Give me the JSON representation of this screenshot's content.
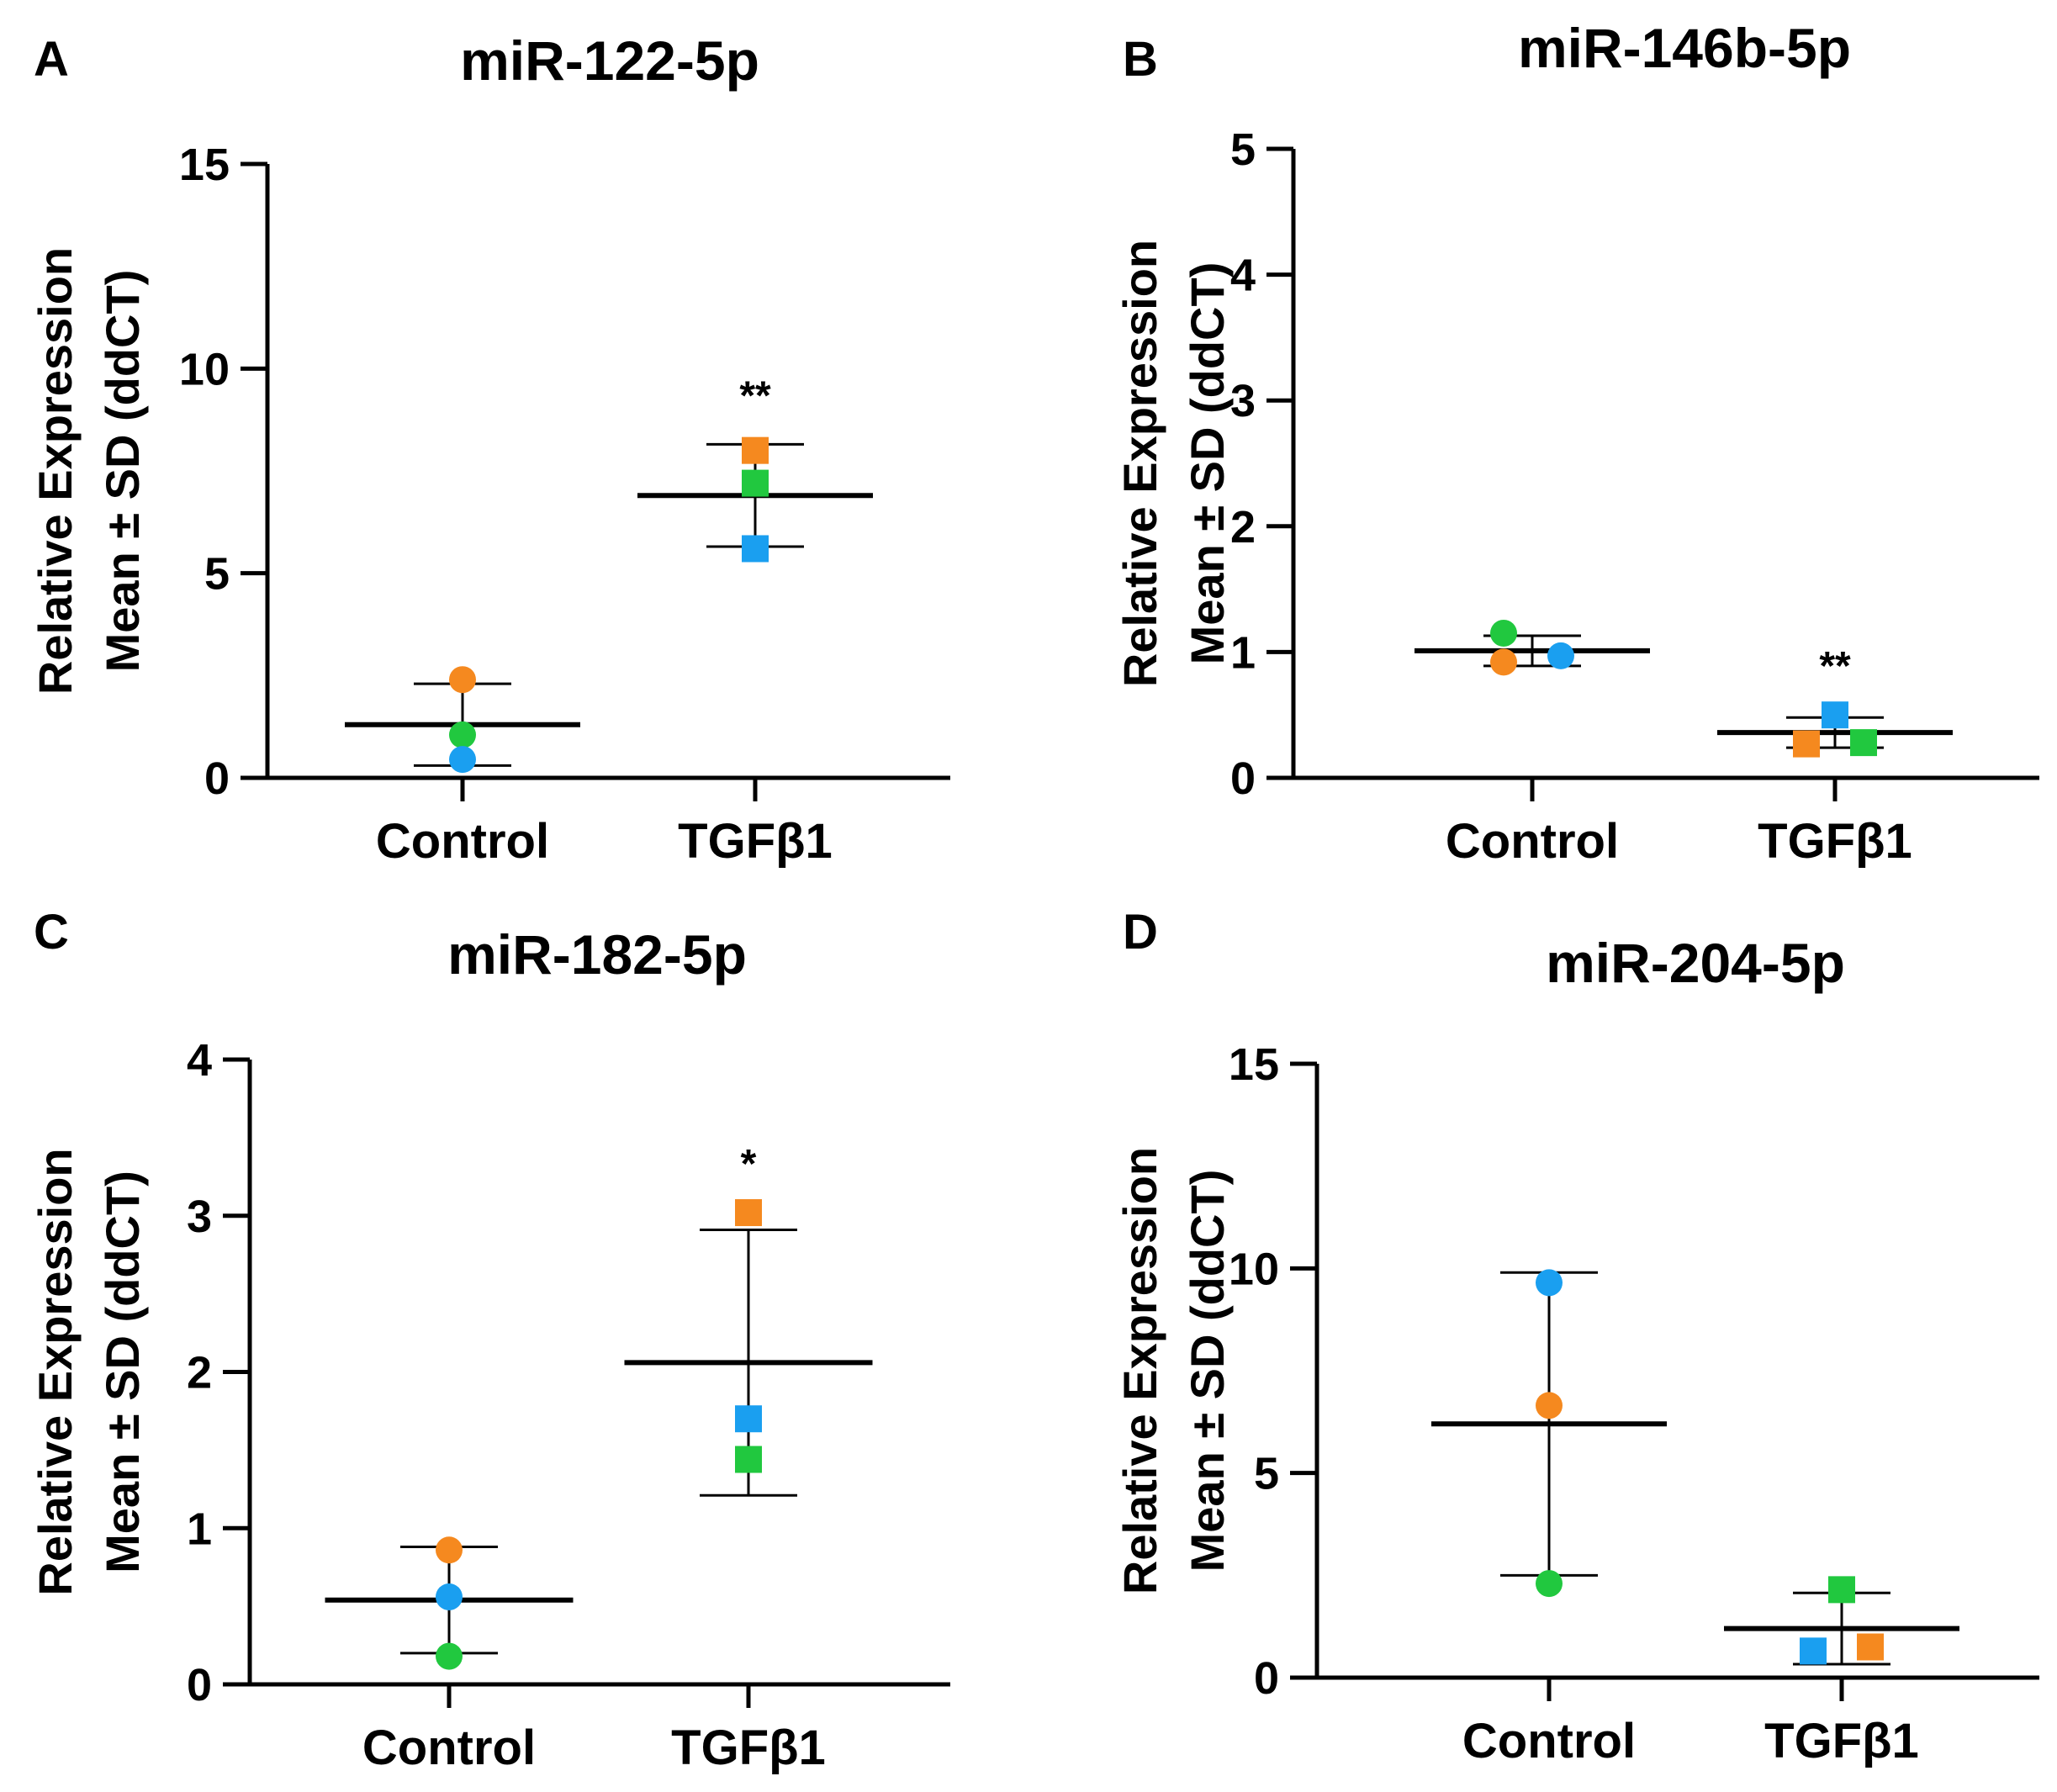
{
  "chart_data": [
    {
      "panel": "A",
      "type": "scatter",
      "title": "miR-122-5p",
      "ylabel_line1": "Relative Expression",
      "ylabel_line2": "Mean ± SD (ddCT)",
      "categories": [
        "Control",
        "TGFβ1"
      ],
      "ylim": [
        0,
        15
      ],
      "yticks": [
        0,
        5,
        10,
        15
      ],
      "groups": [
        {
          "name": "Control",
          "marker": "circle",
          "mean": 1.3,
          "sd": 1.0,
          "points": [
            {
              "value": 2.4,
              "color": "#f5891f"
            },
            {
              "value": 1.05,
              "color": "#21c83f"
            },
            {
              "value": 0.45,
              "color": "#1a9ff0"
            }
          ],
          "significance": ""
        },
        {
          "name": "TGFβ1",
          "marker": "square",
          "mean": 6.9,
          "sd": 1.25,
          "points": [
            {
              "value": 8.0,
              "color": "#f5891f"
            },
            {
              "value": 7.2,
              "color": "#21c83f"
            },
            {
              "value": 5.6,
              "color": "#1a9ff0"
            }
          ],
          "significance": "**"
        }
      ]
    },
    {
      "panel": "B",
      "type": "scatter",
      "title": "miR-146b-5p",
      "ylabel_line1": "Relative Expression",
      "ylabel_line2": "Mean ± SD (ddCT)",
      "categories": [
        "Control",
        "TGFβ1"
      ],
      "ylim": [
        0,
        5
      ],
      "yticks": [
        0,
        1,
        2,
        3,
        4,
        5
      ],
      "groups": [
        {
          "name": "Control",
          "marker": "circle",
          "mean": 1.01,
          "sd": 0.12,
          "points": [
            {
              "value": 1.15,
              "color": "#21c83f",
              "jitter": -1
            },
            {
              "value": 0.92,
              "color": "#f5891f",
              "jitter": -1
            },
            {
              "value": 0.97,
              "color": "#1a9ff0",
              "jitter": 1
            }
          ],
          "significance": ""
        },
        {
          "name": "TGFβ1",
          "marker": "square",
          "mean": 0.36,
          "sd": 0.12,
          "points": [
            {
              "value": 0.5,
              "color": "#1a9ff0",
              "jitter": 0
            },
            {
              "value": 0.27,
              "color": "#f5891f",
              "jitter": -1
            },
            {
              "value": 0.28,
              "color": "#21c83f",
              "jitter": 1
            }
          ],
          "significance": "**"
        }
      ]
    },
    {
      "panel": "C",
      "type": "scatter",
      "title": "miR-182-5p",
      "ylabel_line1": "Relative Expression",
      "ylabel_line2": "Mean ± SD (ddCT)",
      "categories": [
        "Control",
        "TGFβ1"
      ],
      "ylim": [
        0,
        4
      ],
      "yticks": [
        0,
        1,
        2,
        3,
        4
      ],
      "groups": [
        {
          "name": "Control",
          "marker": "circle",
          "mean": 0.54,
          "sd": 0.34,
          "points": [
            {
              "value": 0.86,
              "color": "#f5891f"
            },
            {
              "value": 0.56,
              "color": "#1a9ff0"
            },
            {
              "value": 0.18,
              "color": "#21c83f"
            }
          ],
          "significance": ""
        },
        {
          "name": "TGFβ1",
          "marker": "square",
          "mean": 2.06,
          "sd": 0.85,
          "points": [
            {
              "value": 3.02,
              "color": "#f5891f"
            },
            {
              "value": 1.7,
              "color": "#1a9ff0"
            },
            {
              "value": 1.44,
              "color": "#21c83f"
            }
          ],
          "significance": "*"
        }
      ]
    },
    {
      "panel": "D",
      "type": "scatter",
      "title": "miR-204-5p",
      "ylabel_line1": "Relative Expression",
      "ylabel_line2": "Mean ± SD (ddCT)",
      "categories": [
        "Control",
        "TGFβ1"
      ],
      "ylim": [
        0,
        15
      ],
      "yticks": [
        0,
        5,
        10,
        15
      ],
      "groups": [
        {
          "name": "Control",
          "marker": "circle",
          "mean": 6.2,
          "sd": 3.7,
          "points": [
            {
              "value": 9.65,
              "color": "#1a9ff0"
            },
            {
              "value": 6.65,
              "color": "#f5891f"
            },
            {
              "value": 2.3,
              "color": "#21c83f"
            }
          ],
          "significance": ""
        },
        {
          "name": "TGFβ1",
          "marker": "square",
          "mean": 1.2,
          "sd": 0.87,
          "points": [
            {
              "value": 2.15,
              "color": "#21c83f",
              "jitter": 0
            },
            {
              "value": 0.65,
              "color": "#1a9ff0",
              "jitter": -1
            },
            {
              "value": 0.75,
              "color": "#f5891f",
              "jitter": 1
            }
          ],
          "significance": ""
        }
      ]
    }
  ]
}
